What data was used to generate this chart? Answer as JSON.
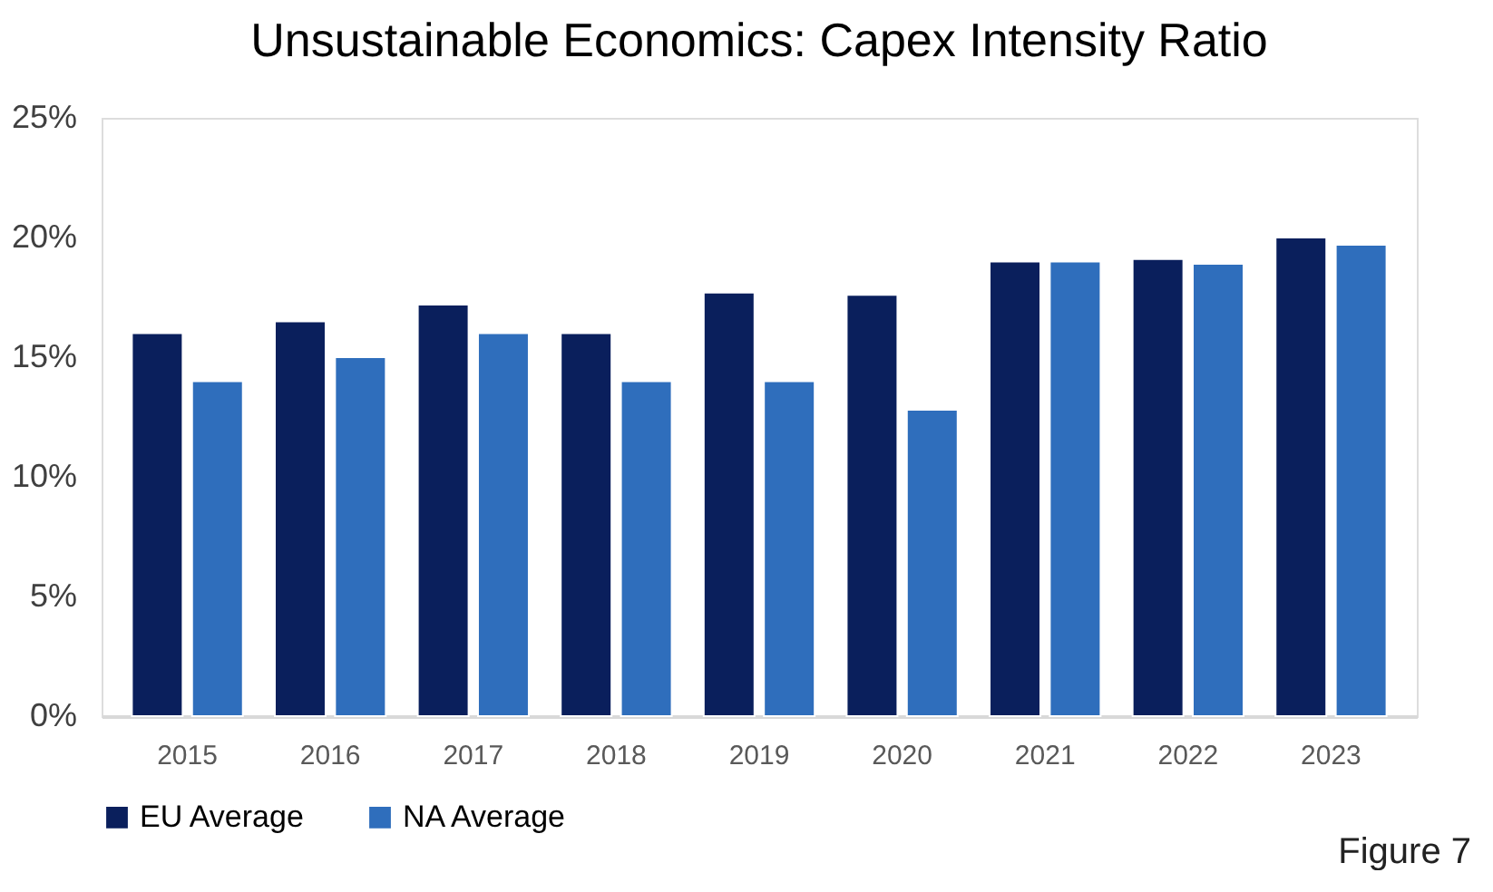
{
  "chart_data": {
    "type": "bar",
    "title": "Unsustainable Economics: Capex Intensity Ratio",
    "categories": [
      "2015",
      "2016",
      "2017",
      "2018",
      "2019",
      "2020",
      "2021",
      "2022",
      "2023"
    ],
    "series": [
      {
        "name": "EU Average",
        "color": "#0a1f5c",
        "values": [
          16.0,
          16.5,
          17.2,
          16.0,
          17.7,
          17.6,
          19.0,
          19.1,
          20.0
        ]
      },
      {
        "name": "NA Average",
        "color": "#2f6ebc",
        "values": [
          14.0,
          15.0,
          16.0,
          14.0,
          14.0,
          12.8,
          19.0,
          18.9,
          19.7
        ]
      }
    ],
    "ylim": [
      0,
      25
    ],
    "yticks": [
      {
        "value": 0,
        "label": "0%"
      },
      {
        "value": 5,
        "label": "5%"
      },
      {
        "value": 10,
        "label": "10%"
      },
      {
        "value": 15,
        "label": "15%"
      },
      {
        "value": 20,
        "label": "20%"
      },
      {
        "value": 25,
        "label": "25%"
      }
    ],
    "grid": false,
    "legend": "bottom",
    "annotations": [
      "Figure 7"
    ]
  }
}
